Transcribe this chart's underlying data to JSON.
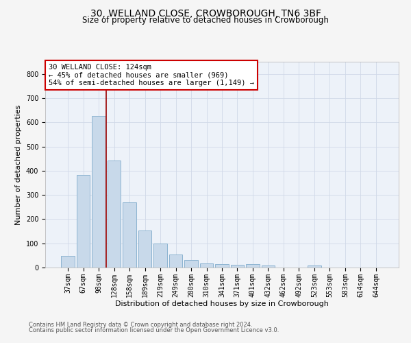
{
  "title": "30, WELLAND CLOSE, CROWBOROUGH, TN6 3BF",
  "subtitle": "Size of property relative to detached houses in Crowborough",
  "xlabel": "Distribution of detached houses by size in Crowborough",
  "ylabel": "Number of detached properties",
  "categories": [
    "37sqm",
    "67sqm",
    "98sqm",
    "128sqm",
    "158sqm",
    "189sqm",
    "219sqm",
    "249sqm",
    "280sqm",
    "310sqm",
    "341sqm",
    "371sqm",
    "401sqm",
    "432sqm",
    "462sqm",
    "492sqm",
    "523sqm",
    "553sqm",
    "583sqm",
    "614sqm",
    "644sqm"
  ],
  "values": [
    47,
    383,
    625,
    443,
    268,
    153,
    98,
    53,
    30,
    18,
    15,
    12,
    14,
    8,
    0,
    0,
    8,
    0,
    0,
    0,
    0
  ],
  "bar_color": "#c8d9ea",
  "bar_edgecolor": "#8cb3d0",
  "bar_linewidth": 0.7,
  "grid_color": "#d0d8e8",
  "bg_color": "#edf2f9",
  "vline_x": 2.5,
  "vline_color": "#990000",
  "annotation_text": "30 WELLAND CLOSE: 124sqm\n← 45% of detached houses are smaller (969)\n54% of semi-detached houses are larger (1,149) →",
  "annotation_box_facecolor": "#ffffff",
  "annotation_box_edgecolor": "#cc0000",
  "ylim": [
    0,
    850
  ],
  "yticks": [
    0,
    100,
    200,
    300,
    400,
    500,
    600,
    700,
    800
  ],
  "footer_line1": "Contains HM Land Registry data © Crown copyright and database right 2024.",
  "footer_line2": "Contains public sector information licensed under the Open Government Licence v3.0.",
  "title_fontsize": 10,
  "subtitle_fontsize": 8.5,
  "xlabel_fontsize": 8,
  "ylabel_fontsize": 8,
  "tick_fontsize": 7,
  "annotation_fontsize": 7.5,
  "footer_fontsize": 6
}
